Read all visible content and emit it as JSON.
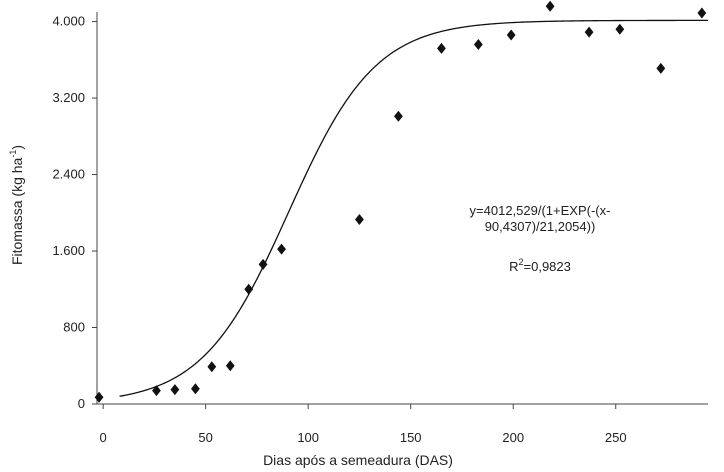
{
  "chart_data": {
    "type": "scatter",
    "title": "",
    "xlabel": "Dias após a semeadura (DAS)",
    "ylabel": "Fitomassa (kg ha",
    "ylabel_sup": "-1",
    "ylabel_tail": ")",
    "xlim": [
      -3,
      295
    ],
    "ylim": [
      0,
      4100
    ],
    "x_ticks": [
      0,
      50,
      100,
      150,
      200,
      250
    ],
    "x_tick_labels": [
      "0",
      "50",
      "100",
      "150",
      "200",
      "250"
    ],
    "y_ticks": [
      0,
      800,
      1600,
      2400,
      3200,
      4000
    ],
    "y_tick_labels": [
      "0",
      "800",
      "1.600",
      "2.400",
      "3.200",
      "4.000"
    ],
    "grid": false,
    "series": [
      {
        "marker": "diamond",
        "color": "#111111",
        "x": [
          -2,
          26,
          35,
          45,
          53,
          62,
          71,
          78,
          87,
          125,
          144,
          165,
          183,
          199,
          218,
          237,
          252,
          272,
          292
        ],
        "y": [
          70,
          140,
          150,
          160,
          390,
          400,
          1200,
          1460,
          1620,
          1930,
          3010,
          3720,
          3760,
          3860,
          4160,
          3890,
          3920,
          3510,
          4090
        ]
      },
      {
        "type": "line",
        "color": "#111111",
        "model": {
          "a": 4012.529,
          "x0": 90.4307,
          "b": 21.2054
        },
        "x_range": [
          8,
          295
        ]
      }
    ],
    "annotations": {
      "equation_line1": "y=4012,529/(1+EXP(-(x-",
      "equation_line2": "90,4307)/21,2054))",
      "r2_prefix": "R",
      "r2_sup": "2",
      "r2_value": "=0,9823"
    }
  }
}
